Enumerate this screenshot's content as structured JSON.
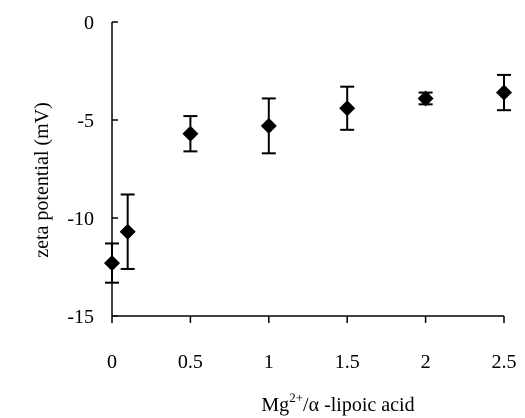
{
  "chart_data": {
    "type": "scatter",
    "xlim": [
      0,
      2.5
    ],
    "ylim": [
      -15,
      0
    ],
    "x_ticks": [
      0,
      0.5,
      1,
      1.5,
      2,
      2.5
    ],
    "y_ticks": [
      0,
      -5,
      -10,
      -15
    ],
    "x_tick_labels": [
      "0",
      "0.5",
      "1",
      "1.5",
      "2",
      "2.5"
    ],
    "y_tick_labels": [
      "0",
      "-5",
      "-10",
      "-15"
    ],
    "xlabel_parts": {
      "base": "Mg",
      "sup": "2+",
      "rest": "/α -lipoic acid"
    },
    "ylabel": "zeta  potential  (mV)",
    "grid": false,
    "marker": "diamond",
    "points": [
      {
        "x": 0,
        "y": -12.3,
        "err_low": 1.0,
        "err_high": 1.0
      },
      {
        "x": 0.1,
        "y": -10.7,
        "err_low": 1.9,
        "err_high": 1.9
      },
      {
        "x": 0.5,
        "y": -5.7,
        "err_low": 0.9,
        "err_high": 0.9
      },
      {
        "x": 1,
        "y": -5.3,
        "err_low": 1.4,
        "err_high": 1.4
      },
      {
        "x": 1.5,
        "y": -4.4,
        "err_low": 1.1,
        "err_high": 1.1
      },
      {
        "x": 2,
        "y": -3.9,
        "err_low": 0.3,
        "err_high": 0.3
      },
      {
        "x": 2.5,
        "y": -3.6,
        "err_low": 0.9,
        "err_high": 0.9
      }
    ],
    "colors": {
      "marker": "#000000",
      "axis": "#000000"
    }
  }
}
